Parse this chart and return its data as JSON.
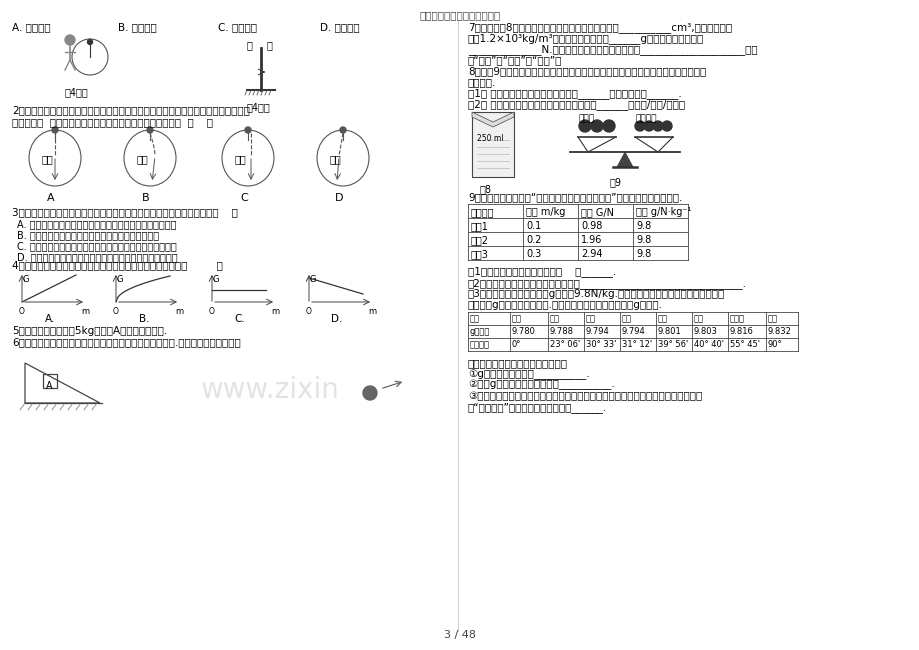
{
  "title": "个人收集整理，仅供参考学习",
  "page": "3 / 48",
  "bg_color": "#ffffff",
  "text_color": "#000000",
  "watermark": "www.zixin",
  "q1_options": [
    "A. 向东倾斜",
    "B. 向南倾斜",
    "C. 向西倾斜",
    "D. 向北倾斜"
  ],
  "earth_labels": [
    "A",
    "B",
    "C",
    "D"
  ],
  "q3_options": [
    "A. 电梯匀速上升时，以地面上地树为参照物，小雨是静止地",
    "B. 电梯匀速下降时，以电梯为参照物，小雨是运动地",
    "C. 电梯匀速上升时，电梯对小雨地支持力大于她自身地重力",
    "D. 电梯匀速下降时，电梯对小雨地支持力等于她自身地重力"
  ],
  "graph_labels": [
    "A.",
    "B.",
    "C.",
    "D."
  ],
  "city_headers": [
    "地点",
    "赤道",
    "广州",
    "武汉",
    "上海",
    "北京",
    "纽约",
    "莫斯科",
    "北极"
  ],
  "city_g": [
    "g値大小",
    "9.780",
    "9.788",
    "9.794",
    "9.794",
    "9.801",
    "9.803",
    "9.816",
    "9.832"
  ],
  "city_lat": [
    "地理纬度",
    "0°",
    "23° 06'",
    "30° 33'",
    "31° 12'",
    "39° 56'",
    "40° 40'",
    "55° 45'",
    "90°"
  ]
}
